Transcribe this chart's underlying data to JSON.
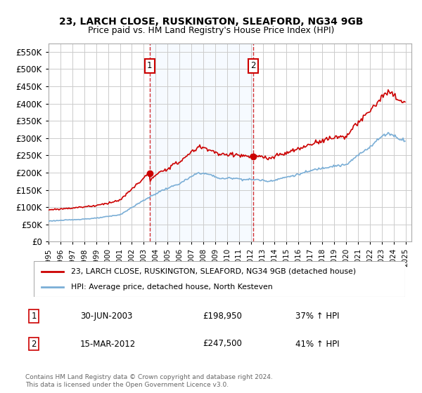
{
  "title1": "23, LARCH CLOSE, RUSKINGTON, SLEAFORD, NG34 9GB",
  "title2": "Price paid vs. HM Land Registry's House Price Index (HPI)",
  "ylim": [
    0,
    575000
  ],
  "yticks": [
    0,
    50000,
    100000,
    150000,
    200000,
    250000,
    300000,
    350000,
    400000,
    450000,
    500000,
    550000
  ],
  "line1_color": "#cc0000",
  "line2_color": "#7aaed6",
  "background_color": "#ffffff",
  "shaded_color": "#ddeeff",
  "grid_color": "#cccccc",
  "legend_line1": "23, LARCH CLOSE, RUSKINGTON, SLEAFORD, NG34 9GB (detached house)",
  "legend_line2": "HPI: Average price, detached house, North Kesteven",
  "sale1_date": "30-JUN-2003",
  "sale1_price": "£198,950",
  "sale1_pct": "37% ↑ HPI",
  "sale2_date": "15-MAR-2012",
  "sale2_price": "£247,500",
  "sale2_pct": "41% ↑ HPI",
  "footnote": "Contains HM Land Registry data © Crown copyright and database right 2024.\nThis data is licensed under the Open Government Licence v3.0.",
  "sale1_x": 2003.5,
  "sale2_x": 2012.21,
  "sale1_y": 198950,
  "sale2_y": 247500,
  "xmin": 1995.0,
  "xmax": 2025.5
}
